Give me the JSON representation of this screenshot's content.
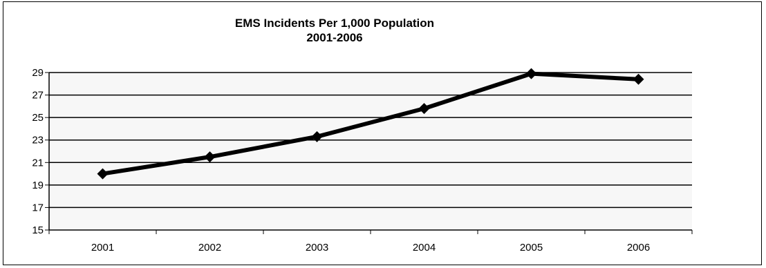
{
  "chart_data": {
    "type": "line",
    "title": "EMS  Incidents Per 1,000 Population",
    "subtitle": "2001-2006",
    "xlabel": "",
    "ylabel": "",
    "categories": [
      "2001",
      "2002",
      "2003",
      "2004",
      "2005",
      "2006"
    ],
    "series": [
      {
        "values": [
          20.0,
          21.5,
          23.3,
          25.8,
          28.9,
          28.4
        ],
        "color": "#000000",
        "marker": "diamond"
      }
    ],
    "ylim": [
      15,
      29
    ],
    "yticks": [
      15,
      17,
      19,
      21,
      23,
      25,
      27,
      29
    ],
    "grid": "horizontal",
    "plot_background": "#f7f7f7",
    "legend": "none"
  }
}
